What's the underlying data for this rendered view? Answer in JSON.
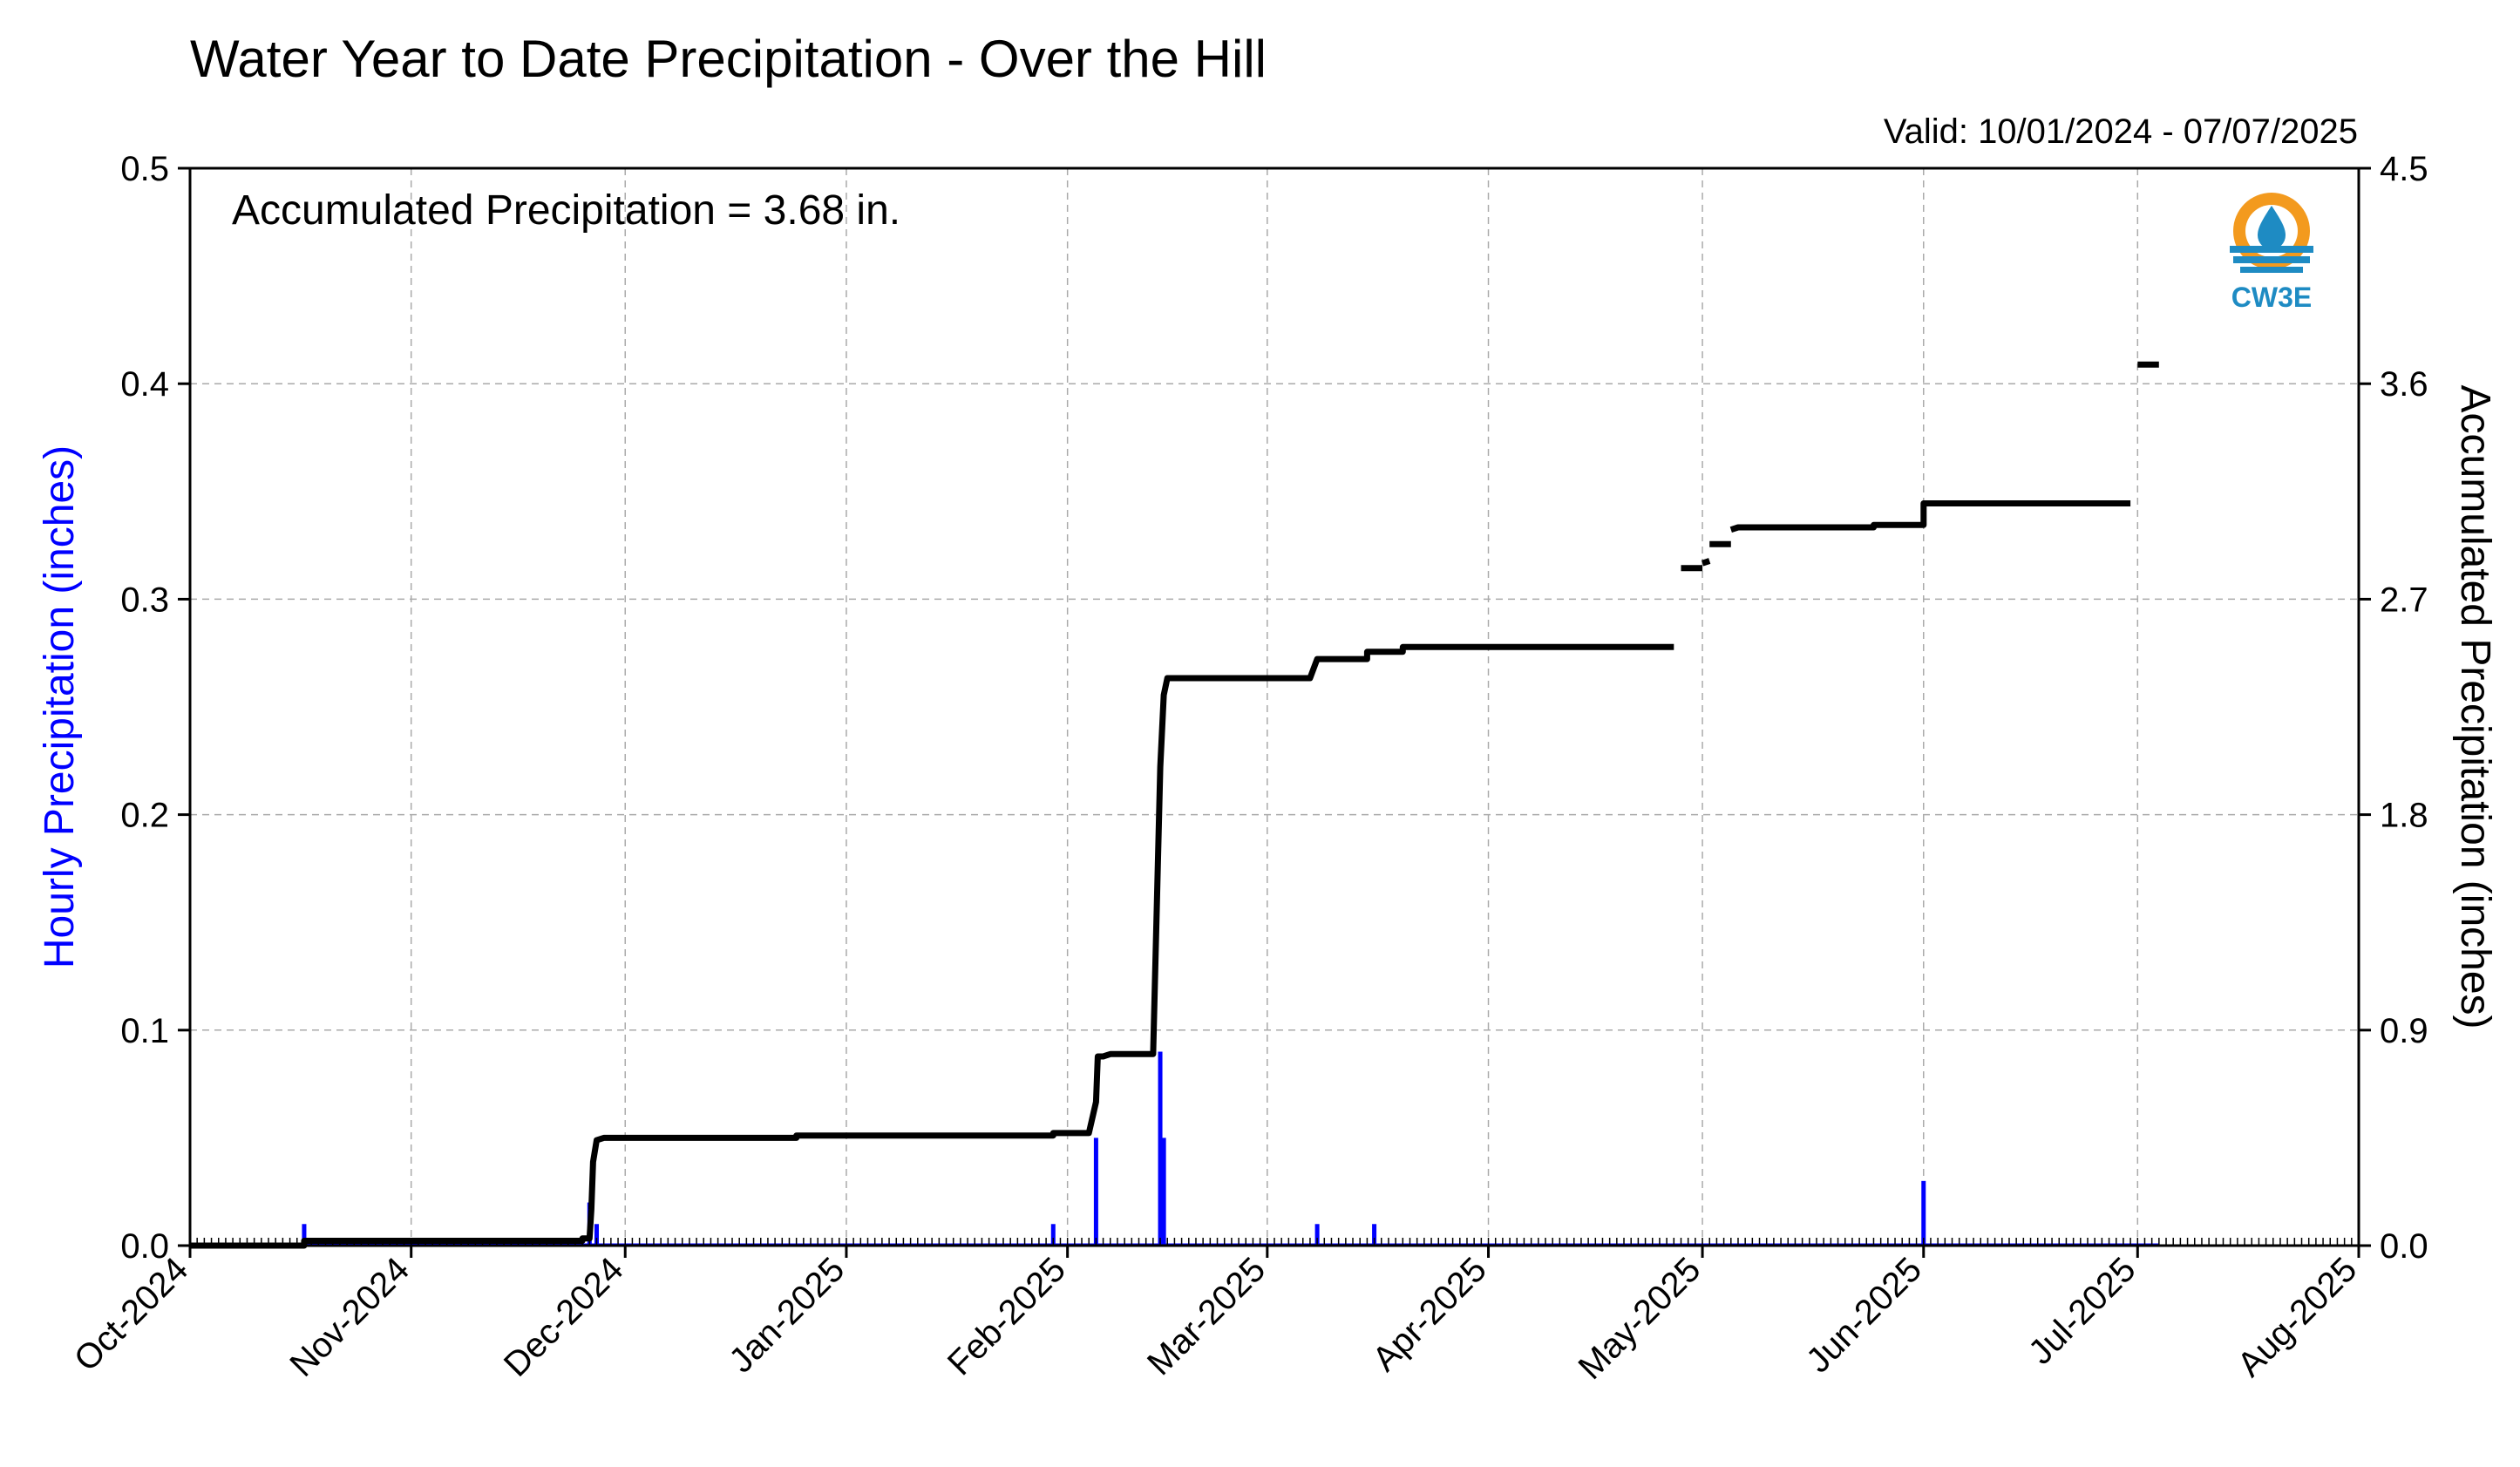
{
  "chart_data": {
    "type": "bar+line",
    "title": "Water Year to Date Precipitation - Over the Hill",
    "valid_text": "Valid: 10/01/2024 - 07/07/2025",
    "annotation": "Accumulated Precipitation = 3.68 in.",
    "logo_text": "CW3E",
    "ylabel_left": "Hourly Precipitation (inches)",
    "ylabel_right": "Accumulated Precipitation (inches)",
    "ylim_left": [
      0,
      0.5
    ],
    "ylim_right": [
      0,
      4.5
    ],
    "yticks_left": [
      "0.0",
      "0.1",
      "0.2",
      "0.3",
      "0.4",
      "0.5"
    ],
    "yticks_right": [
      "0.0",
      "0.9",
      "1.8",
      "2.7",
      "3.6",
      "4.5"
    ],
    "x_range": [
      "2024-10-01",
      "2025-08-01"
    ],
    "x_tick_labels": [
      "Oct-2024",
      "Nov-2024",
      "Dec-2024",
      "Jan-2025",
      "Feb-2025",
      "Mar-2025",
      "Apr-2025",
      "May-2025",
      "Jun-2025",
      "Jul-2025",
      "Aug-2025"
    ],
    "x_tick_dates": [
      "2024-10-01",
      "2024-11-01",
      "2024-12-01",
      "2025-01-01",
      "2025-02-01",
      "2025-03-01",
      "2025-04-01",
      "2025-05-01",
      "2025-06-01",
      "2025-07-01",
      "2025-08-01"
    ],
    "grid": true,
    "colors": {
      "hourly": "#0000ff",
      "accumulated": "#000000",
      "grid": "#aaaaaa",
      "logo_orange": "#f39a1e",
      "logo_blue": "#1e8bc3"
    },
    "series": [
      {
        "name": "Hourly Precipitation",
        "axis": "left",
        "kind": "bar",
        "points": [
          {
            "date": "2024-10-17",
            "value": 0.01
          },
          {
            "date": "2024-11-26",
            "value": 0.02
          },
          {
            "date": "2024-11-27",
            "value": 0.01
          },
          {
            "date": "2025-01-30",
            "value": 0.01
          },
          {
            "date": "2025-02-05",
            "value": 0.05
          },
          {
            "date": "2025-02-14",
            "value": 0.09
          },
          {
            "date": "2025-02-14 12:00",
            "value": 0.05
          },
          {
            "date": "2025-03-08",
            "value": 0.01
          },
          {
            "date": "2025-03-16",
            "value": 0.01
          },
          {
            "date": "2025-06-01",
            "value": 0.03
          }
        ]
      },
      {
        "name": "Accumulated Precipitation",
        "axis": "right",
        "kind": "line",
        "segments": [
          [
            {
              "date": "2024-10-01",
              "value": 0.0
            },
            {
              "date": "2024-10-17",
              "value": 0.0
            },
            {
              "date": "2024-10-17",
              "value": 0.02
            },
            {
              "date": "2024-11-25",
              "value": 0.02
            },
            {
              "date": "2024-11-25",
              "value": 0.03
            },
            {
              "date": "2024-11-26",
              "value": 0.03
            },
            {
              "date": "2024-11-26 06:00",
              "value": 0.15
            },
            {
              "date": "2024-11-26 12:00",
              "value": 0.35
            },
            {
              "date": "2024-11-27",
              "value": 0.44
            },
            {
              "date": "2024-11-28",
              "value": 0.45
            },
            {
              "date": "2024-12-25",
              "value": 0.45
            },
            {
              "date": "2024-12-25",
              "value": 0.46
            },
            {
              "date": "2025-01-30",
              "value": 0.46
            },
            {
              "date": "2025-01-30",
              "value": 0.47
            },
            {
              "date": "2025-02-04",
              "value": 0.47
            },
            {
              "date": "2025-02-05",
              "value": 0.6
            },
            {
              "date": "2025-02-05 06:00",
              "value": 0.79
            },
            {
              "date": "2025-02-06",
              "value": 0.79
            },
            {
              "date": "2025-02-07",
              "value": 0.8
            },
            {
              "date": "2025-02-13",
              "value": 0.8
            },
            {
              "date": "2025-02-13 12:00",
              "value": 1.4
            },
            {
              "date": "2025-02-14",
              "value": 2.0
            },
            {
              "date": "2025-02-14 12:00",
              "value": 2.3
            },
            {
              "date": "2025-02-15",
              "value": 2.37
            },
            {
              "date": "2025-03-07",
              "value": 2.37
            },
            {
              "date": "2025-03-08",
              "value": 2.45
            },
            {
              "date": "2025-03-15",
              "value": 2.45
            },
            {
              "date": "2025-03-15",
              "value": 2.48
            },
            {
              "date": "2025-03-20",
              "value": 2.48
            },
            {
              "date": "2025-03-20",
              "value": 2.5
            },
            {
              "date": "2025-04-27",
              "value": 2.5
            }
          ],
          [
            {
              "date": "2025-04-28",
              "value": 2.83
            },
            {
              "date": "2025-05-01",
              "value": 2.83
            }
          ],
          [
            {
              "date": "2025-05-01",
              "value": 2.85
            },
            {
              "date": "2025-05-02",
              "value": 2.86
            }
          ],
          [
            {
              "date": "2025-05-02",
              "value": 2.93
            },
            {
              "date": "2025-05-05",
              "value": 2.93
            }
          ],
          [
            {
              "date": "2025-05-05",
              "value": 2.99
            },
            {
              "date": "2025-05-06",
              "value": 3.0
            },
            {
              "date": "2025-05-25",
              "value": 3.0
            },
            {
              "date": "2025-05-25",
              "value": 3.01
            },
            {
              "date": "2025-06-01",
              "value": 3.01
            },
            {
              "date": "2025-06-01",
              "value": 3.1
            },
            {
              "date": "2025-06-30",
              "value": 3.1
            }
          ],
          [
            {
              "date": "2025-07-01",
              "value": 3.68
            },
            {
              "date": "2025-07-04",
              "value": 3.68
            }
          ]
        ]
      }
    ]
  }
}
